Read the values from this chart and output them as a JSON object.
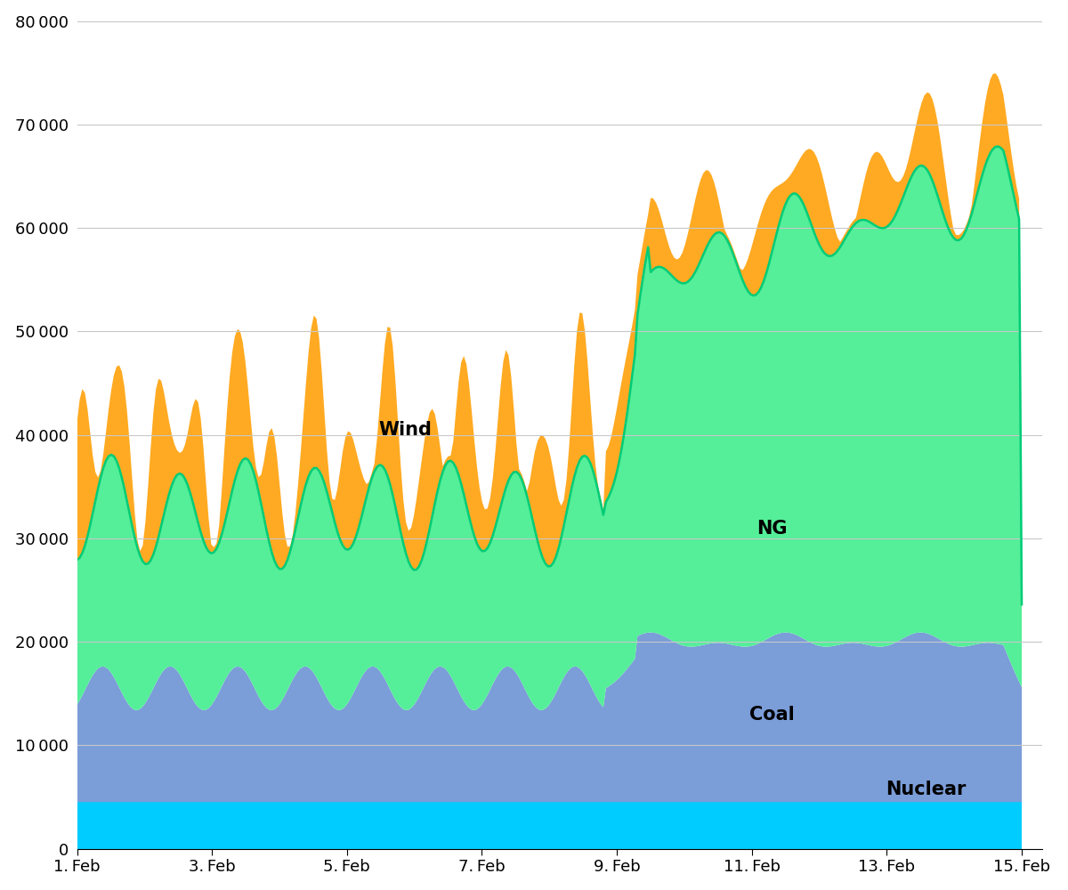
{
  "ylim": [
    0,
    80000
  ],
  "yticks": [
    0,
    10000,
    20000,
    30000,
    40000,
    50000,
    60000,
    70000,
    80000
  ],
  "colors": {
    "nuclear": "#00CCFF",
    "coal": "#7B9DD8",
    "ng": "#55EE99",
    "wind": "#FFAA22",
    "ng_outline": "#00CC77"
  },
  "background": "#FFFFFF",
  "grid_color": "#C8C8C8",
  "label_wind": "Wind",
  "label_ng": "NG",
  "label_coal": "Coal",
  "label_nuclear": "Nuclear",
  "n_points": 360
}
